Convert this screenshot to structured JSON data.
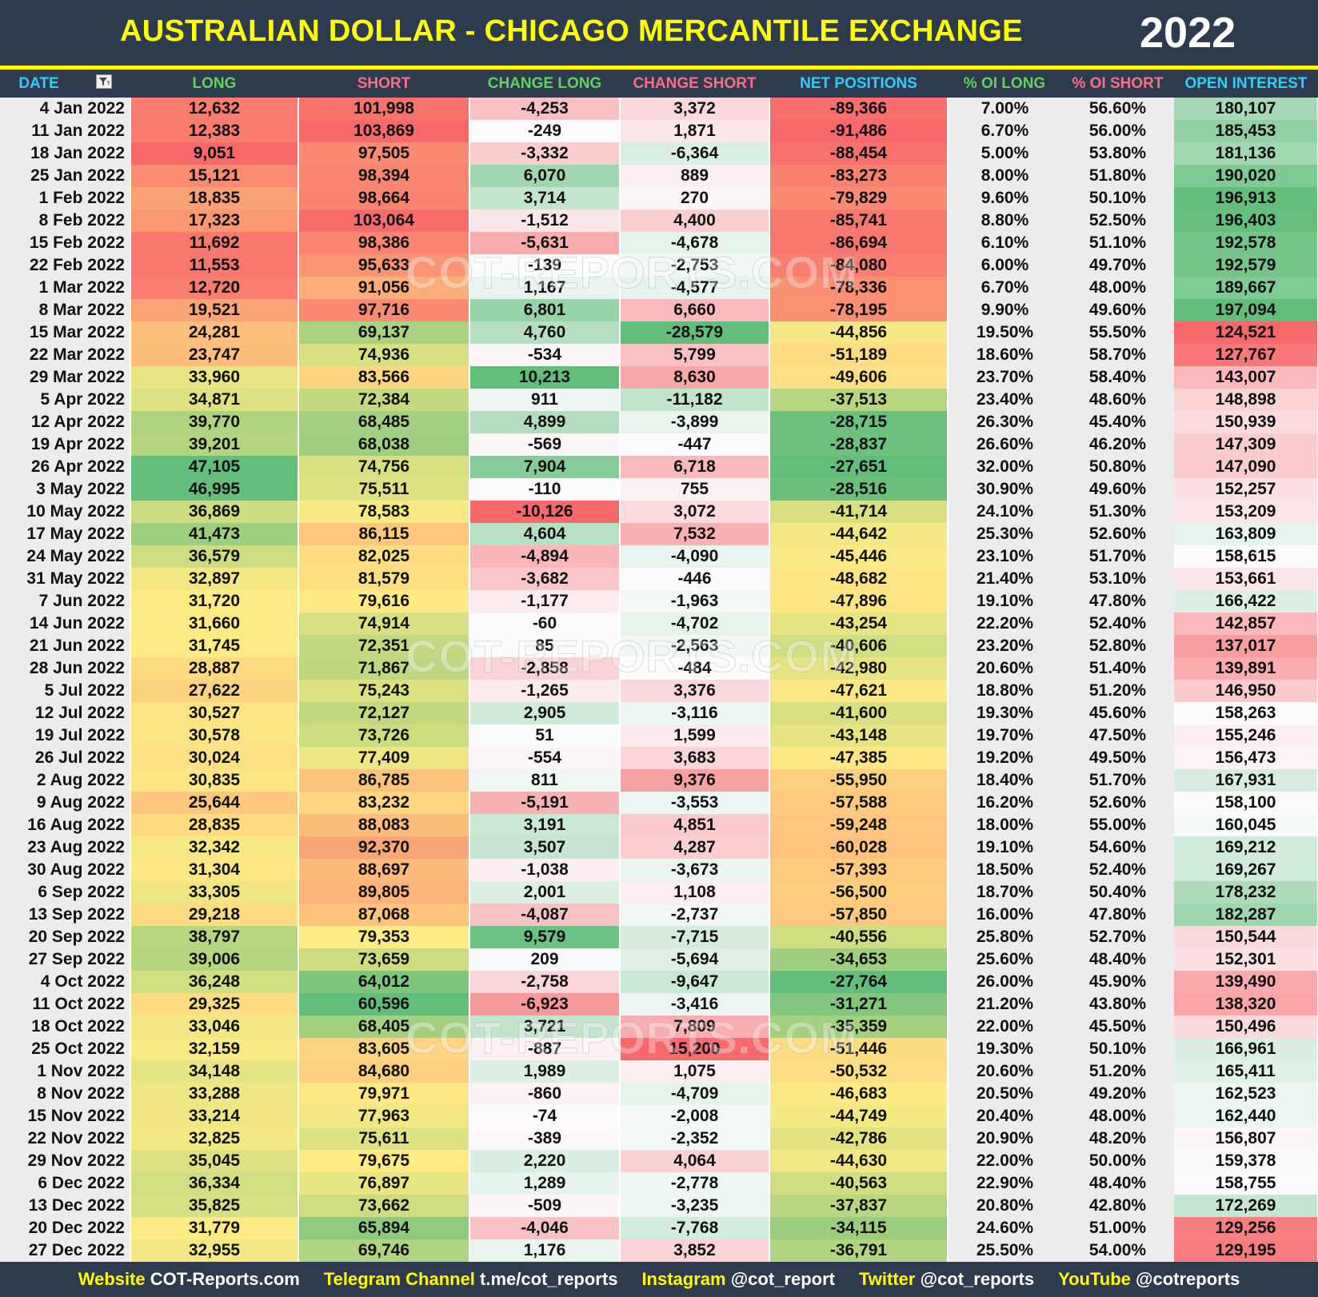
{
  "header": {
    "title": "AUSTRALIAN DOLLAR - CHICAGO MERCANTILE EXCHANGE",
    "year": "2022"
  },
  "table": {
    "columns": [
      "DATE",
      "LONG",
      "SHORT",
      "CHANGE LONG",
      "CHANGE SHORT",
      "NET POSITIONS",
      "% OI LONG",
      "% OI SHORT",
      "OPEN INTEREST"
    ],
    "rows": [
      [
        "4 Jan 2022",
        "12,632",
        "101,998",
        "-4,253",
        "3,372",
        "-89,366",
        "7.00%",
        "56.60%",
        "180,107"
      ],
      [
        "11 Jan 2022",
        "12,383",
        "103,869",
        "-249",
        "1,871",
        "-91,486",
        "6.70%",
        "56.00%",
        "185,453"
      ],
      [
        "18 Jan 2022",
        "9,051",
        "97,505",
        "-3,332",
        "-6,364",
        "-88,454",
        "5.00%",
        "53.80%",
        "181,136"
      ],
      [
        "25 Jan 2022",
        "15,121",
        "98,394",
        "6,070",
        "889",
        "-83,273",
        "8.00%",
        "51.80%",
        "190,020"
      ],
      [
        "1 Feb 2022",
        "18,835",
        "98,664",
        "3,714",
        "270",
        "-79,829",
        "9.60%",
        "50.10%",
        "196,913"
      ],
      [
        "8 Feb 2022",
        "17,323",
        "103,064",
        "-1,512",
        "4,400",
        "-85,741",
        "8.80%",
        "52.50%",
        "196,403"
      ],
      [
        "15 Feb 2022",
        "11,692",
        "98,386",
        "-5,631",
        "-4,678",
        "-86,694",
        "6.10%",
        "51.10%",
        "192,578"
      ],
      [
        "22 Feb 2022",
        "11,553",
        "95,633",
        "-139",
        "-2,753",
        "-84,080",
        "6.00%",
        "49.70%",
        "192,579"
      ],
      [
        "1 Mar 2022",
        "12,720",
        "91,056",
        "1,167",
        "-4,577",
        "-78,336",
        "6.70%",
        "48.00%",
        "189,667"
      ],
      [
        "8 Mar 2022",
        "19,521",
        "97,716",
        "6,801",
        "6,660",
        "-78,195",
        "9.90%",
        "49.60%",
        "197,094"
      ],
      [
        "15 Mar 2022",
        "24,281",
        "69,137",
        "4,760",
        "-28,579",
        "-44,856",
        "19.50%",
        "55.50%",
        "124,521"
      ],
      [
        "22 Mar 2022",
        "23,747",
        "74,936",
        "-534",
        "5,799",
        "-51,189",
        "18.60%",
        "58.70%",
        "127,767"
      ],
      [
        "29 Mar 2022",
        "33,960",
        "83,566",
        "10,213",
        "8,630",
        "-49,606",
        "23.70%",
        "58.40%",
        "143,007"
      ],
      [
        "5 Apr 2022",
        "34,871",
        "72,384",
        "911",
        "-11,182",
        "-37,513",
        "23.40%",
        "48.60%",
        "148,898"
      ],
      [
        "12 Apr 2022",
        "39,770",
        "68,485",
        "4,899",
        "-3,899",
        "-28,715",
        "26.30%",
        "45.40%",
        "150,939"
      ],
      [
        "19 Apr 2022",
        "39,201",
        "68,038",
        "-569",
        "-447",
        "-28,837",
        "26.60%",
        "46.20%",
        "147,309"
      ],
      [
        "26 Apr 2022",
        "47,105",
        "74,756",
        "7,904",
        "6,718",
        "-27,651",
        "32.00%",
        "50.80%",
        "147,090"
      ],
      [
        "3 May 2022",
        "46,995",
        "75,511",
        "-110",
        "755",
        "-28,516",
        "30.90%",
        "49.60%",
        "152,257"
      ],
      [
        "10 May 2022",
        "36,869",
        "78,583",
        "-10,126",
        "3,072",
        "-41,714",
        "24.10%",
        "51.30%",
        "153,209"
      ],
      [
        "17 May 2022",
        "41,473",
        "86,115",
        "4,604",
        "7,532",
        "-44,642",
        "25.30%",
        "52.60%",
        "163,809"
      ],
      [
        "24 May 2022",
        "36,579",
        "82,025",
        "-4,894",
        "-4,090",
        "-45,446",
        "23.10%",
        "51.70%",
        "158,615"
      ],
      [
        "31 May 2022",
        "32,897",
        "81,579",
        "-3,682",
        "-446",
        "-48,682",
        "21.40%",
        "53.10%",
        "153,661"
      ],
      [
        "7 Jun 2022",
        "31,720",
        "79,616",
        "-1,177",
        "-1,963",
        "-47,896",
        "19.10%",
        "47.80%",
        "166,422"
      ],
      [
        "14 Jun 2022",
        "31,660",
        "74,914",
        "-60",
        "-4,702",
        "-43,254",
        "22.20%",
        "52.40%",
        "142,857"
      ],
      [
        "21 Jun 2022",
        "31,745",
        "72,351",
        "85",
        "-2,563",
        "-40,606",
        "23.20%",
        "52.80%",
        "137,017"
      ],
      [
        "28 Jun 2022",
        "28,887",
        "71,867",
        "-2,858",
        "-484",
        "-42,980",
        "20.60%",
        "51.40%",
        "139,891"
      ],
      [
        "5 Jul 2022",
        "27,622",
        "75,243",
        "-1,265",
        "3,376",
        "-47,621",
        "18.80%",
        "51.20%",
        "146,950"
      ],
      [
        "12 Jul 2022",
        "30,527",
        "72,127",
        "2,905",
        "-3,116",
        "-41,600",
        "19.30%",
        "45.60%",
        "158,263"
      ],
      [
        "19 Jul 2022",
        "30,578",
        "73,726",
        "51",
        "1,599",
        "-43,148",
        "19.70%",
        "47.50%",
        "155,246"
      ],
      [
        "26 Jul 2022",
        "30,024",
        "77,409",
        "-554",
        "3,683",
        "-47,385",
        "19.20%",
        "49.50%",
        "156,473"
      ],
      [
        "2 Aug 2022",
        "30,835",
        "86,785",
        "811",
        "9,376",
        "-55,950",
        "18.40%",
        "51.70%",
        "167,931"
      ],
      [
        "9 Aug 2022",
        "25,644",
        "83,232",
        "-5,191",
        "-3,553",
        "-57,588",
        "16.20%",
        "52.60%",
        "158,100"
      ],
      [
        "16 Aug 2022",
        "28,835",
        "88,083",
        "3,191",
        "4,851",
        "-59,248",
        "18.00%",
        "55.00%",
        "160,045"
      ],
      [
        "23 Aug 2022",
        "32,342",
        "92,370",
        "3,507",
        "4,287",
        "-60,028",
        "19.10%",
        "54.60%",
        "169,212"
      ],
      [
        "30 Aug 2022",
        "31,304",
        "88,697",
        "-1,038",
        "-3,673",
        "-57,393",
        "18.50%",
        "52.40%",
        "169,267"
      ],
      [
        "6 Sep 2022",
        "33,305",
        "89,805",
        "2,001",
        "1,108",
        "-56,500",
        "18.70%",
        "50.40%",
        "178,232"
      ],
      [
        "13 Sep 2022",
        "29,218",
        "87,068",
        "-4,087",
        "-2,737",
        "-57,850",
        "16.00%",
        "47.80%",
        "182,287"
      ],
      [
        "20 Sep 2022",
        "38,797",
        "79,353",
        "9,579",
        "-7,715",
        "-40,556",
        "25.80%",
        "52.70%",
        "150,544"
      ],
      [
        "27 Sep 2022",
        "39,006",
        "73,659",
        "209",
        "-5,694",
        "-34,653",
        "25.60%",
        "48.40%",
        "152,301"
      ],
      [
        "4 Oct 2022",
        "36,248",
        "64,012",
        "-2,758",
        "-9,647",
        "-27,764",
        "26.00%",
        "45.90%",
        "139,490"
      ],
      [
        "11 Oct 2022",
        "29,325",
        "60,596",
        "-6,923",
        "-3,416",
        "-31,271",
        "21.20%",
        "43.80%",
        "138,320"
      ],
      [
        "18 Oct 2022",
        "33,046",
        "68,405",
        "3,721",
        "7,809",
        "-35,359",
        "22.00%",
        "45.50%",
        "150,496"
      ],
      [
        "25 Oct 2022",
        "32,159",
        "83,605",
        "-887",
        "15,200",
        "-51,446",
        "19.30%",
        "50.10%",
        "166,961"
      ],
      [
        "1 Nov 2022",
        "34,148",
        "84,680",
        "1,989",
        "1,075",
        "-50,532",
        "20.60%",
        "51.20%",
        "165,411"
      ],
      [
        "8 Nov 2022",
        "33,288",
        "79,971",
        "-860",
        "-4,709",
        "-46,683",
        "20.50%",
        "49.20%",
        "162,523"
      ],
      [
        "15 Nov 2022",
        "33,214",
        "77,963",
        "-74",
        "-2,008",
        "-44,749",
        "20.40%",
        "48.00%",
        "162,440"
      ],
      [
        "22 Nov 2022",
        "32,825",
        "75,611",
        "-389",
        "-2,352",
        "-42,786",
        "20.90%",
        "48.20%",
        "156,807"
      ],
      [
        "29 Nov 2022",
        "35,045",
        "79,675",
        "2,220",
        "4,064",
        "-44,630",
        "22.00%",
        "50.00%",
        "159,378"
      ],
      [
        "6 Dec 2022",
        "36,334",
        "76,897",
        "1,289",
        "-2,778",
        "-40,563",
        "22.90%",
        "48.40%",
        "158,755"
      ],
      [
        "13 Dec 2022",
        "35,825",
        "73,662",
        "-509",
        "-3,235",
        "-37,837",
        "20.80%",
        "42.80%",
        "172,269"
      ],
      [
        "20 Dec 2022",
        "31,779",
        "65,894",
        "-4,046",
        "-7,768",
        "-34,115",
        "24.60%",
        "51.00%",
        "129,256"
      ],
      [
        "27 Dec 2022",
        "32,955",
        "69,746",
        "1,176",
        "3,852",
        "-36,791",
        "25.50%",
        "54.00%",
        "129,195"
      ]
    ]
  },
  "watermark": "COT-REPORTS.COM",
  "footer": {
    "links": [
      {
        "label": "Website",
        "value": "COT-Reports.com"
      },
      {
        "label": "Telegram Channel",
        "value": "t.me/cot_reports"
      },
      {
        "label": "Instagram",
        "value": "@cot_report"
      },
      {
        "label": "Twitter",
        "value": "@cot_reports"
      },
      {
        "label": "YouTube",
        "value": "@cotreports"
      }
    ]
  }
}
